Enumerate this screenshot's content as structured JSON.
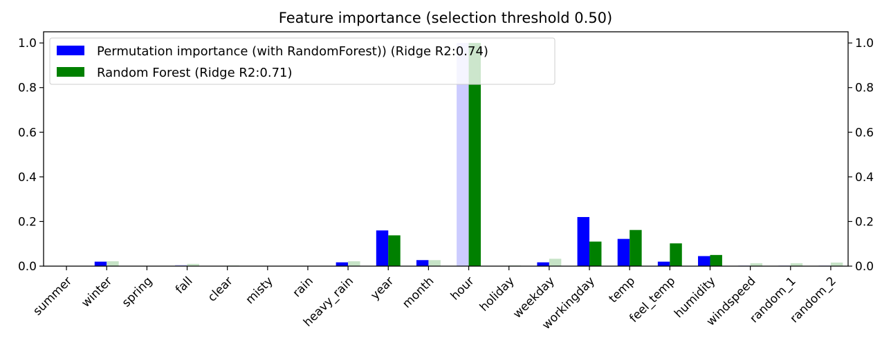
{
  "chart_data": {
    "type": "bar",
    "title": "Feature importance (selection threshold 0.50)",
    "categories": [
      "summer",
      "winter",
      "spring",
      "fall",
      "clear",
      "misty",
      "rain",
      "heavy_rain",
      "year",
      "month",
      "hour",
      "holiday",
      "weekday",
      "workingday",
      "temp",
      "feel_temp",
      "humidity",
      "windspeed",
      "random_1",
      "random_2"
    ],
    "series": [
      {
        "name": "Permutation importance (with RandomForest)) (Ridge R2:0.74)",
        "color": "#0000ff",
        "light_color": "#ccccff",
        "values": [
          0.0,
          0.02,
          0.0,
          0.006,
          0.0,
          0.0,
          0.0,
          0.017,
          0.16,
          0.027,
          1.0,
          0.001,
          0.017,
          0.22,
          0.122,
          0.02,
          0.045,
          0.003,
          0.003,
          0.003
        ],
        "selected": [
          false,
          true,
          false,
          false,
          false,
          false,
          false,
          true,
          true,
          true,
          false,
          false,
          true,
          true,
          true,
          true,
          true,
          false,
          false,
          false
        ]
      },
      {
        "name": "Random Forest (Ridge R2:0.71)",
        "color": "#008000",
        "light_color": "#c6e3c6",
        "values": [
          0.0,
          0.022,
          0.0,
          0.01,
          0.003,
          0.0,
          0.0,
          0.022,
          0.138,
          0.027,
          1.0,
          0.003,
          0.033,
          0.11,
          0.162,
          0.102,
          0.05,
          0.013,
          0.013,
          0.016
        ],
        "selected": [
          false,
          false,
          false,
          false,
          false,
          false,
          false,
          false,
          true,
          false,
          true,
          false,
          false,
          true,
          true,
          true,
          true,
          false,
          false,
          false
        ]
      }
    ],
    "ylim": [
      0,
      1.05
    ],
    "yticks": [
      0.0,
      0.2,
      0.4,
      0.6,
      0.8,
      1.0
    ],
    "ytick_labels": [
      "0.0",
      "0.2",
      "0.4",
      "0.6",
      "0.8",
      "1.0"
    ],
    "secondary_y_axis": true,
    "xlabel": "",
    "ylabel": "",
    "grid": false,
    "legend_position": "top-left"
  }
}
